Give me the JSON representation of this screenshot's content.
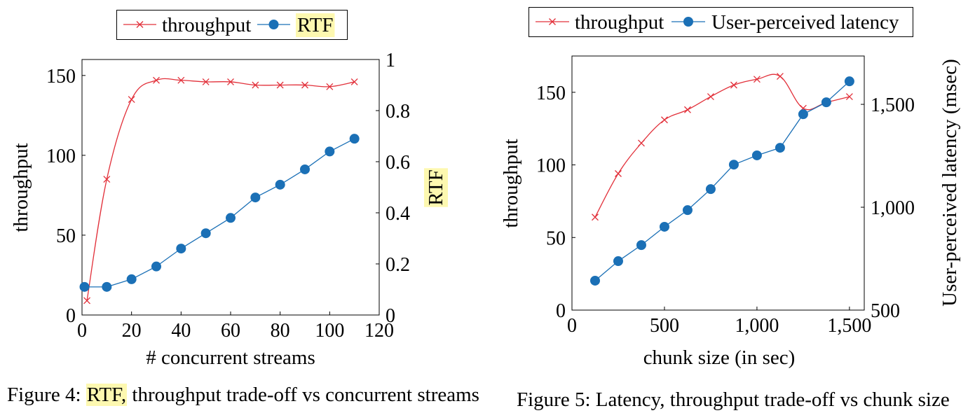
{
  "colors": {
    "highlight": "#fdf8b0",
    "axis": "#000000"
  },
  "chart_data": [
    {
      "type": "line",
      "xlabel": "# concurrent streams",
      "ylabel": "throughput",
      "ylabel_right": "RTF",
      "xlim": [
        0,
        120
      ],
      "ylim": [
        0,
        160
      ],
      "ylim_right": [
        0,
        1
      ],
      "xticks": [
        0,
        20,
        40,
        60,
        80,
        100,
        120
      ],
      "xtick_labels": [
        "0",
        "20",
        "40",
        "60",
        "80",
        "100",
        "120"
      ],
      "yticks": [
        0,
        50,
        100,
        150
      ],
      "ytick_labels": [
        "0",
        "50",
        "100",
        "150"
      ],
      "yticks_right": [
        0,
        0.2,
        0.4,
        0.6,
        0.8,
        1
      ],
      "ytick_labels_right": [
        "0",
        "0.2",
        "0.4",
        "0.6",
        "0.8",
        "1"
      ],
      "grid": false,
      "legend": "above",
      "series": [
        {
          "name": "throughput",
          "axis": "left",
          "marker": "x",
          "smooth": true,
          "color": "#e2303a",
          "x": [
            2,
            10,
            20,
            30,
            40,
            50,
            60,
            70,
            80,
            90,
            100,
            110
          ],
          "y": [
            9,
            85,
            135,
            147,
            147,
            146,
            146,
            144,
            144,
            144,
            143,
            146
          ]
        },
        {
          "name": "RTF",
          "axis": "right",
          "marker": "circle",
          "smooth": false,
          "color": "#1b70b6",
          "x": [
            1,
            10,
            20,
            30,
            40,
            50,
            60,
            70,
            80,
            90,
            100,
            110
          ],
          "y": [
            0.11,
            0.11,
            0.14,
            0.19,
            0.26,
            0.32,
            0.38,
            0.46,
            0.51,
            0.57,
            0.64,
            0.69
          ]
        }
      ],
      "caption": {
        "label": "Figure 4:",
        "highlight": "RTF,",
        "text": "throughput trade-off vs concurrent streams"
      }
    },
    {
      "type": "line",
      "xlabel": "chunk size (in sec)",
      "ylabel": "throughput",
      "ylabel_right": "User-perceived latency (msec)",
      "xlim": [
        0,
        1580
      ],
      "ylim": [
        0,
        175
      ],
      "ylim_right": [
        500,
        1735
      ],
      "xticks": [
        0,
        500,
        1000,
        1500
      ],
      "xtick_labels": [
        "0",
        "500",
        "1,000",
        "1,500"
      ],
      "yticks": [
        0,
        50,
        100,
        150
      ],
      "ytick_labels": [
        "0",
        "50",
        "100",
        "150"
      ],
      "yticks_right": [
        500,
        1000,
        1500
      ],
      "ytick_labels_right": [
        "500",
        "1,000",
        "1,500"
      ],
      "grid": false,
      "legend": "above",
      "series": [
        {
          "name": "throughput",
          "axis": "left",
          "marker": "x",
          "smooth": true,
          "color": "#e2303a",
          "x": [
            125,
            250,
            375,
            500,
            625,
            750,
            875,
            1000,
            1125,
            1250,
            1375,
            1500
          ],
          "y": [
            64,
            94,
            115,
            131,
            138,
            147,
            155,
            159,
            161,
            139,
            143,
            147
          ]
        },
        {
          "name": "User-perceived latency",
          "axis": "right",
          "marker": "circle",
          "smooth": false,
          "color": "#1b70b6",
          "x": [
            125,
            250,
            375,
            500,
            625,
            750,
            875,
            1000,
            1125,
            1250,
            1375,
            1500
          ],
          "y": [
            643,
            738,
            816,
            905,
            986,
            1088,
            1207,
            1252,
            1289,
            1452,
            1510,
            1612
          ]
        }
      ],
      "caption": {
        "label": "Figure 5:",
        "text": "Latency, throughput trade-off vs chunk size"
      }
    }
  ]
}
